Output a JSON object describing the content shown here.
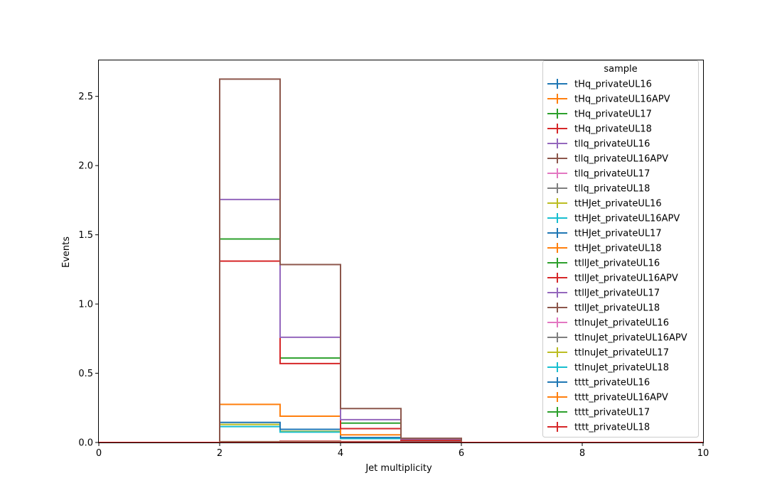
{
  "chart_data": {
    "type": "line",
    "subtype": "step-histogram",
    "title": "",
    "xlabel": "Jet multiplicity",
    "ylabel": "Events",
    "xlim": [
      0,
      10
    ],
    "ylim": [
      0,
      2.76
    ],
    "x_ticks": [
      "0",
      "2",
      "4",
      "6",
      "8",
      "10"
    ],
    "y_ticks": [
      "0.0",
      "0.5",
      "1.0",
      "1.5",
      "2.0",
      "2.5"
    ],
    "legend_title": "sample",
    "legend_position": "upper right",
    "grid": false,
    "bin_edges": [
      0,
      1,
      2,
      3,
      4,
      5,
      6,
      7,
      8,
      9,
      10
    ],
    "series": [
      {
        "name": "tHq_privateUL16",
        "color": "#1f77b4",
        "values": [
          0,
          0,
          0.004,
          0.006,
          0.004,
          0.002,
          0,
          0,
          0,
          0
        ]
      },
      {
        "name": "tHq_privateUL16APV",
        "color": "#ff7f0e",
        "values": [
          0,
          0,
          0.004,
          0.005,
          0.004,
          0.002,
          0,
          0,
          0,
          0
        ]
      },
      {
        "name": "tHq_privateUL17",
        "color": "#2ca02c",
        "values": [
          0,
          0,
          0.005,
          0.007,
          0.005,
          0.002,
          0,
          0,
          0,
          0
        ]
      },
      {
        "name": "tHq_privateUL18",
        "color": "#d62728",
        "values": [
          0,
          0,
          0.006,
          0.009,
          0.006,
          0.003,
          0,
          0,
          0,
          0
        ]
      },
      {
        "name": "tllq_privateUL16",
        "color": "#9467bd",
        "values": [
          0,
          0,
          0.003,
          0.004,
          0.002,
          0.001,
          0,
          0,
          0,
          0
        ]
      },
      {
        "name": "tllq_privateUL16APV",
        "color": "#8c564b",
        "values": [
          0,
          0,
          0.003,
          0.004,
          0.002,
          0.001,
          0,
          0,
          0,
          0
        ]
      },
      {
        "name": "tllq_privateUL17",
        "color": "#e377c2",
        "values": [
          0,
          0,
          0.004,
          0.005,
          0.003,
          0.001,
          0,
          0,
          0,
          0
        ]
      },
      {
        "name": "tllq_privateUL18",
        "color": "#7f7f7f",
        "values": [
          0,
          0,
          0.005,
          0.006,
          0.004,
          0.001,
          0,
          0,
          0,
          0
        ]
      },
      {
        "name": "ttHJet_privateUL16",
        "color": "#bcbd22",
        "values": [
          0,
          0,
          0.13,
          0.08,
          0.03,
          0.01,
          0,
          0,
          0,
          0
        ]
      },
      {
        "name": "ttHJet_privateUL16APV",
        "color": "#17becf",
        "values": [
          0,
          0,
          0.115,
          0.075,
          0.028,
          0.009,
          0,
          0,
          0,
          0
        ]
      },
      {
        "name": "ttHJet_privateUL17",
        "color": "#1f77b4",
        "values": [
          0,
          0,
          0.145,
          0.095,
          0.035,
          0.012,
          0,
          0,
          0,
          0
        ]
      },
      {
        "name": "ttHJet_privateUL18",
        "color": "#ff7f0e",
        "values": [
          0,
          0,
          0.275,
          0.19,
          0.055,
          0.018,
          0,
          0,
          0,
          0
        ]
      },
      {
        "name": "ttllJet_privateUL16",
        "color": "#2ca02c",
        "values": [
          0,
          0,
          1.47,
          0.61,
          0.14,
          0.02,
          0,
          0,
          0,
          0
        ]
      },
      {
        "name": "ttllJet_privateUL16APV",
        "color": "#d62728",
        "values": [
          0,
          0,
          1.31,
          0.57,
          0.1,
          0.015,
          0,
          0,
          0,
          0
        ]
      },
      {
        "name": "ttllJet_privateUL17",
        "color": "#9467bd",
        "values": [
          0,
          0,
          1.755,
          0.76,
          0.165,
          0.025,
          0,
          0,
          0,
          0
        ]
      },
      {
        "name": "ttllJet_privateUL18",
        "color": "#8c564b",
        "values": [
          0,
          0,
          2.625,
          1.285,
          0.245,
          0.03,
          0,
          0,
          0,
          0
        ]
      },
      {
        "name": "ttlnuJet_privateUL16",
        "color": "#e377c2",
        "values": [
          0,
          0,
          0.002,
          0.003,
          0.002,
          0.001,
          0,
          0,
          0,
          0
        ]
      },
      {
        "name": "ttlnuJet_privateUL16APV",
        "color": "#7f7f7f",
        "values": [
          0,
          0,
          0.002,
          0.003,
          0.002,
          0.001,
          0,
          0,
          0,
          0
        ]
      },
      {
        "name": "ttlnuJet_privateUL17",
        "color": "#bcbd22",
        "values": [
          0,
          0,
          0.003,
          0.004,
          0.002,
          0.001,
          0,
          0,
          0,
          0
        ]
      },
      {
        "name": "ttlnuJet_privateUL18",
        "color": "#17becf",
        "values": [
          0,
          0,
          0.003,
          0.004,
          0.003,
          0.001,
          0,
          0,
          0,
          0
        ]
      },
      {
        "name": "tttt_privateUL16",
        "color": "#1f77b4",
        "values": [
          0,
          0,
          0.001,
          0.002,
          0.002,
          0.001,
          0,
          0,
          0,
          0
        ]
      },
      {
        "name": "tttt_privateUL16APV",
        "color": "#ff7f0e",
        "values": [
          0,
          0,
          0.001,
          0.002,
          0.002,
          0.001,
          0,
          0,
          0,
          0
        ]
      },
      {
        "name": "tttt_privateUL17",
        "color": "#2ca02c",
        "values": [
          0,
          0,
          0.001,
          0.002,
          0.002,
          0.001,
          0,
          0,
          0,
          0
        ]
      },
      {
        "name": "tttt_privateUL18",
        "color": "#d62728",
        "values": [
          0,
          0,
          0.001,
          0.002,
          0.002,
          0.001,
          0,
          0,
          0,
          0
        ]
      }
    ]
  }
}
